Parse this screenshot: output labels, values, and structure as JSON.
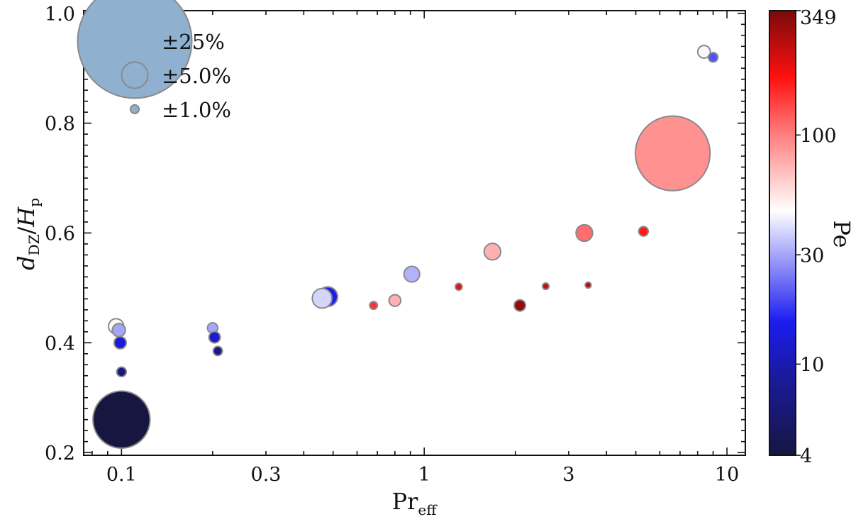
{
  "chart_data": {
    "type": "scatter",
    "x_scale": "log",
    "xlim": [
      0.075,
      11.5
    ],
    "ylim": [
      0.195,
      1.005
    ],
    "xticks": [
      {
        "value": 0.1,
        "label": "0.1"
      },
      {
        "value": 0.3,
        "label": "0.3"
      },
      {
        "value": 1,
        "label": "1"
      },
      {
        "value": 3,
        "label": "3"
      },
      {
        "value": 10,
        "label": "10"
      }
    ],
    "yticks": [
      {
        "value": 0.2,
        "label": "0.2"
      },
      {
        "value": 0.4,
        "label": "0.4"
      },
      {
        "value": 0.6,
        "label": "0.6"
      },
      {
        "value": 0.8,
        "label": "0.8"
      },
      {
        "value": 1.0,
        "label": "1.0"
      }
    ],
    "xlabel": {
      "main": "Pr",
      "sub": "eff"
    },
    "ylabel": {
      "d": "d",
      "d_sub": "DZ",
      "slash": "/",
      "H": "H",
      "H_sub": "p"
    },
    "legend": {
      "placement": "top-left",
      "entries": [
        {
          "label": "±25%",
          "uncertainty_pct": 25
        },
        {
          "label": "±5.0%",
          "uncertainty_pct": 5
        },
        {
          "label": "±1.0%",
          "uncertainty_pct": 1
        }
      ]
    },
    "colorbar": {
      "label": "Pe",
      "scale": "log",
      "range": [
        4,
        349
      ],
      "ticks": [
        {
          "value": 4,
          "label": "4"
        },
        {
          "value": 10,
          "label": "10"
        },
        {
          "value": 30,
          "label": "30"
        },
        {
          "value": 100,
          "label": "100"
        },
        {
          "value": 349,
          "label": "349"
        }
      ]
    },
    "points": [
      {
        "x": 0.096,
        "y": 0.43,
        "pe": 48,
        "unc": 2.5
      },
      {
        "x": 0.098,
        "y": 0.423,
        "pe": 30,
        "unc": 2.0
      },
      {
        "x": 0.099,
        "y": 0.4,
        "pe": 13,
        "unc": 1.8
      },
      {
        "x": 0.1,
        "y": 0.347,
        "pe": 7,
        "unc": 1.2
      },
      {
        "x": 0.1,
        "y": 0.26,
        "pe": 4,
        "unc": 12
      },
      {
        "x": 0.2,
        "y": 0.427,
        "pe": 30,
        "unc": 1.4
      },
      {
        "x": 0.203,
        "y": 0.41,
        "pe": 12,
        "unc": 1.6
      },
      {
        "x": 0.208,
        "y": 0.385,
        "pe": 7,
        "unc": 1.1
      },
      {
        "x": 0.48,
        "y": 0.484,
        "pe": 15,
        "unc": 3.5
      },
      {
        "x": 0.46,
        "y": 0.481,
        "pe": 38,
        "unc": 3.5
      },
      {
        "x": 0.68,
        "y": 0.468,
        "pe": 150,
        "unc": 0.8
      },
      {
        "x": 0.8,
        "y": 0.477,
        "pe": 75,
        "unc": 1.7
      },
      {
        "x": 0.91,
        "y": 0.525,
        "pe": 32,
        "unc": 2.6
      },
      {
        "x": 1.3,
        "y": 0.502,
        "pe": 200,
        "unc": 0.6
      },
      {
        "x": 1.68,
        "y": 0.566,
        "pe": 75,
        "unc": 2.8
      },
      {
        "x": 2.07,
        "y": 0.468,
        "pe": 300,
        "unc": 1.6
      },
      {
        "x": 2.52,
        "y": 0.503,
        "pe": 240,
        "unc": 0.5
      },
      {
        "x": 3.38,
        "y": 0.6,
        "pe": 110,
        "unc": 2.8
      },
      {
        "x": 3.48,
        "y": 0.505,
        "pe": 250,
        "unc": 0.4
      },
      {
        "x": 5.3,
        "y": 0.603,
        "pe": 170,
        "unc": 1.2
      },
      {
        "x": 6.62,
        "y": 0.745,
        "pe": 90,
        "unc": 16
      },
      {
        "x": 8.4,
        "y": 0.93,
        "pe": 45,
        "unc": 1.9
      },
      {
        "x": 9.0,
        "y": 0.92,
        "pe": 20,
        "unc": 1.2
      }
    ]
  }
}
